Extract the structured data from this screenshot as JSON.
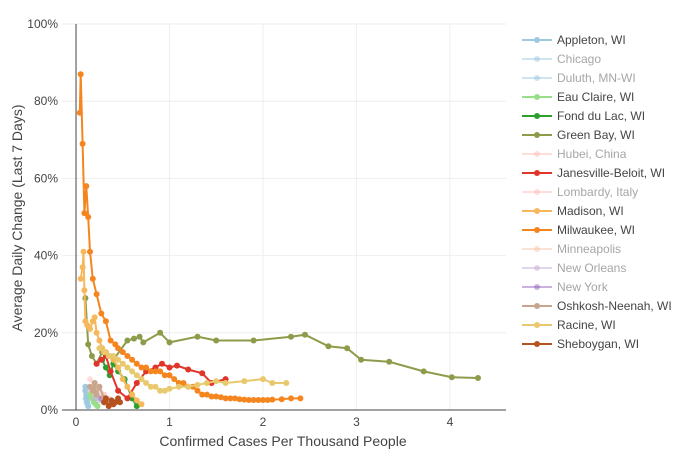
{
  "chart_data": {
    "type": "line",
    "title": "",
    "xlabel": "Confirmed Cases Per Thousand People",
    "ylabel": "Average Daily Change (Last 7 Days)",
    "xlim": [
      -0.15,
      4.6
    ],
    "ylim": [
      0,
      100
    ],
    "xticks": [
      0,
      1,
      2,
      3,
      4
    ],
    "xtick_labels": [
      "0",
      "1",
      "2",
      "3",
      "4"
    ],
    "yticks": [
      0,
      20,
      40,
      60,
      80,
      100
    ],
    "ytick_labels": [
      "0%",
      "20%",
      "40%",
      "60%",
      "80%",
      "100%"
    ],
    "grid": true,
    "legend_position": "right",
    "series": [
      {
        "name": "Appleton, WI",
        "color": "#9ecae1",
        "dimmed": false,
        "x": [
          0.1,
          0.1,
          0.11,
          0.11,
          0.12,
          0.13
        ],
        "y": [
          6,
          5,
          4,
          3,
          2,
          1
        ]
      },
      {
        "name": "Chicago",
        "color": "#9ecae1",
        "dimmed": true,
        "x": [
          0.15,
          0.18,
          0.22,
          0.27,
          0.32
        ],
        "y": [
          5,
          4,
          3,
          2.5,
          2
        ]
      },
      {
        "name": "Duluth, MN-WI",
        "color": "#9ecae1",
        "dimmed": true,
        "x": [
          0.1,
          0.11,
          0.12,
          0.13
        ],
        "y": [
          3,
          2,
          1.5,
          1
        ]
      },
      {
        "name": "Eau Claire, WI",
        "color": "#98df8a",
        "dimmed": false,
        "x": [
          0.15,
          0.17,
          0.19,
          0.21,
          0.23
        ],
        "y": [
          4,
          3,
          2,
          1.5,
          1
        ]
      },
      {
        "name": "Fond du Lac, WI",
        "color": "#2ca02c",
        "dimmed": false,
        "x": [
          0.28,
          0.32,
          0.36,
          0.4,
          0.45,
          0.52,
          0.6,
          0.65
        ],
        "y": [
          13,
          11,
          9,
          12,
          10,
          8,
          3,
          1
        ]
      },
      {
        "name": "Green Bay, WI",
        "color": "#8c9c4a",
        "dimmed": false,
        "x": [
          0.1,
          0.13,
          0.17,
          0.22,
          0.28,
          0.4,
          0.55,
          0.62,
          0.68,
          0.72,
          0.9,
          1.0,
          1.3,
          1.5,
          1.9,
          2.3,
          2.45,
          2.7,
          2.9,
          3.05,
          3.35,
          3.72,
          4.02,
          4.3
        ],
        "y": [
          29,
          17,
          14,
          12,
          15,
          13,
          18,
          18.5,
          19,
          17.5,
          20,
          17.5,
          19,
          18,
          18,
          19,
          19.5,
          16.5,
          16,
          13,
          12.5,
          10,
          8.5,
          8.3
        ]
      },
      {
        "name": "Hubei, China",
        "color": "#ffbbb8",
        "dimmed": true,
        "x": [
          0.15,
          0.2,
          0.25,
          0.3
        ],
        "y": [
          8,
          6,
          5,
          4
        ]
      },
      {
        "name": "Janesville-Beloit, WI",
        "color": "#e0352a",
        "dimmed": false,
        "x": [
          0.22,
          0.27,
          0.32,
          0.37,
          0.45,
          0.55,
          0.65,
          0.75,
          0.85,
          0.92,
          1.0,
          1.08,
          1.2,
          1.35,
          1.45,
          1.6
        ],
        "y": [
          12,
          13,
          14,
          10,
          5,
          3,
          7,
          10,
          11,
          12,
          11,
          11.5,
          10.5,
          9.5,
          7,
          8
        ]
      },
      {
        "name": "Lombardy, Italy",
        "color": "#ffbbb8",
        "dimmed": true,
        "x": [
          0.25,
          0.3,
          0.35,
          0.4
        ],
        "y": [
          6,
          4,
          3,
          2
        ]
      },
      {
        "name": "Madison, WI",
        "color": "#f7b85c",
        "dimmed": false,
        "x": [
          0.05,
          0.07,
          0.08,
          0.09,
          0.1,
          0.12,
          0.15,
          0.18,
          0.2,
          0.22,
          0.25,
          0.28,
          0.32,
          0.36,
          0.4,
          0.45,
          0.5,
          0.55,
          0.6,
          0.65,
          0.7
        ],
        "y": [
          34,
          37,
          41,
          31,
          23,
          22,
          21,
          23,
          24,
          20,
          18,
          16,
          15,
          14,
          13,
          11,
          8,
          6,
          4,
          2.5,
          1.5
        ]
      },
      {
        "name": "Milwaukee, WI",
        "color": "#f5861f",
        "dimmed": false,
        "x": [
          0.04,
          0.05,
          0.07,
          0.09,
          0.11,
          0.13,
          0.15,
          0.18,
          0.22,
          0.27,
          0.32,
          0.37,
          0.42,
          0.45,
          0.5,
          0.55,
          0.6,
          0.65,
          0.7,
          0.75,
          0.8,
          0.85,
          0.9,
          0.95,
          1.0,
          1.05,
          1.1,
          1.15,
          1.2,
          1.25,
          1.3,
          1.35,
          1.4,
          1.45,
          1.5,
          1.55,
          1.6,
          1.65,
          1.7,
          1.75,
          1.8,
          1.85,
          1.9,
          1.95,
          2.0,
          2.05,
          2.1,
          2.2,
          2.3,
          2.4
        ],
        "y": [
          77,
          87,
          69,
          51,
          58,
          50,
          41,
          34,
          30,
          25,
          23,
          18,
          17,
          16,
          15,
          14,
          13,
          12,
          11,
          11,
          10,
          10,
          10,
          9,
          9,
          8,
          7,
          7,
          6,
          6,
          5,
          4,
          4,
          3.5,
          3.5,
          3.3,
          3,
          3,
          3,
          2.8,
          2.7,
          2.6,
          2.6,
          2.6,
          2.6,
          2.6,
          2.7,
          2.8,
          3,
          3
        ]
      },
      {
        "name": "Minneapolis",
        "color": "#f5c7a9",
        "dimmed": true,
        "x": [
          0.15,
          0.2,
          0.25,
          0.3,
          0.35
        ],
        "y": [
          5,
          4,
          3.5,
          3,
          2.5
        ]
      },
      {
        "name": "New Orleans",
        "color": "#c5b0d5",
        "dimmed": true,
        "x": [
          0.2,
          0.25,
          0.3
        ],
        "y": [
          3,
          2.5,
          2
        ]
      },
      {
        "name": "New York",
        "color": "#9467bd",
        "dimmed": true,
        "x": [
          0.22,
          0.27,
          0.32
        ],
        "y": [
          4,
          3,
          2.5
        ]
      },
      {
        "name": "Oshkosh-Neenah, WI",
        "color": "#c7a68d",
        "dimmed": false,
        "x": [
          0.15,
          0.18,
          0.2,
          0.22,
          0.25,
          0.3,
          0.35,
          0.4
        ],
        "y": [
          6,
          5,
          7,
          4,
          6,
          3,
          2,
          1.5
        ]
      },
      {
        "name": "Racine, WI",
        "color": "#e8c96d",
        "dimmed": false,
        "x": [
          0.25,
          0.3,
          0.35,
          0.4,
          0.45,
          0.5,
          0.55,
          0.6,
          0.65,
          0.7,
          0.75,
          0.8,
          0.85,
          0.9,
          0.95,
          1.0,
          1.1,
          1.2,
          1.3,
          1.4,
          1.5,
          1.6,
          1.8,
          2.0,
          2.1,
          2.25
        ],
        "y": [
          16,
          15,
          14,
          14,
          13,
          12,
          11,
          10,
          9,
          8,
          7,
          6,
          6,
          5,
          5,
          5.5,
          6,
          6,
          6.5,
          7,
          7.5,
          7,
          7.5,
          8,
          7,
          7
        ]
      },
      {
        "name": "Sheboygan, WI",
        "color": "#b5521f",
        "dimmed": false,
        "x": [
          0.3,
          0.32,
          0.35,
          0.38,
          0.4,
          0.42,
          0.45,
          0.47
        ],
        "y": [
          2,
          3,
          1,
          2.5,
          1.5,
          2,
          3,
          2
        ]
      }
    ]
  }
}
